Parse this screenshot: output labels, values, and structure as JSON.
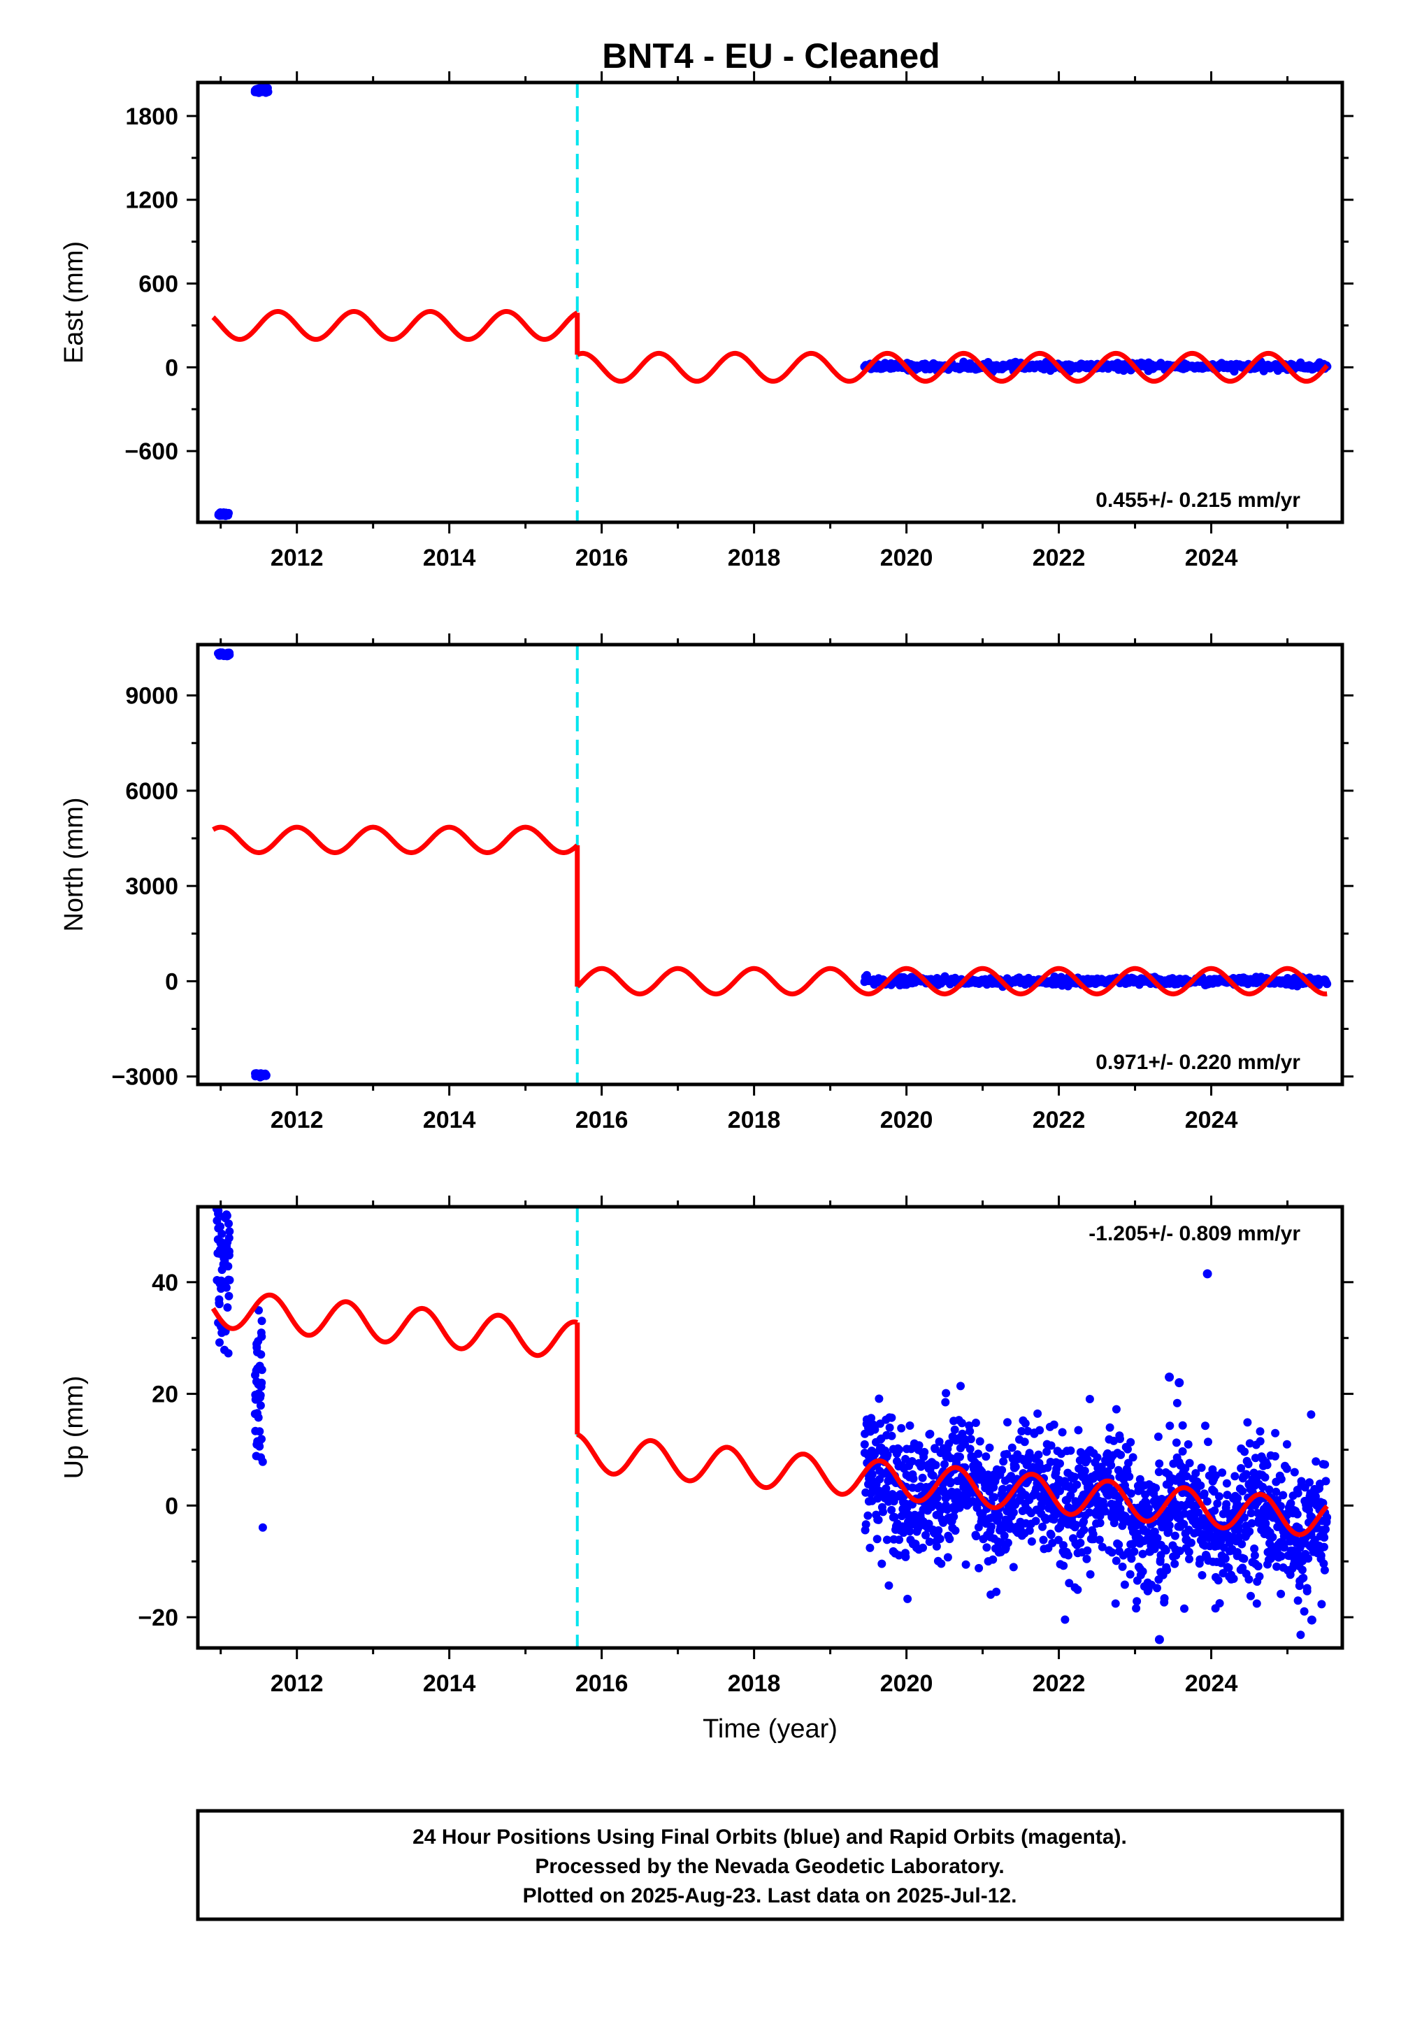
{
  "title": "BNT4  - EU - Cleaned",
  "footer": {
    "lines": [
      "24 Hour Positions Using Final Orbits (blue) and Rapid Orbits (magenta).",
      "Processed by the Nevada Geodetic Laboratory.",
      "Plotted on 2025-Aug-23. Last data on 2025-Jul-12."
    ]
  },
  "colors": {
    "data": "#0000ff",
    "model": "#ff0000",
    "offset": "#00e5ee",
    "frame": "#000000"
  },
  "chart_data": [
    {
      "type": "scatter",
      "ylabel": "East (mm)",
      "xlabel": "",
      "xlim": [
        2010.7,
        2025.72
      ],
      "ylim": [
        -1110,
        2040
      ],
      "x_ticks": [
        2012,
        2014,
        2016,
        2018,
        2020,
        2022,
        2024
      ],
      "y_ticks": [
        -600,
        0,
        600,
        1200,
        1800
      ],
      "y_tick_labels": [
        "−600",
        "0",
        "600",
        "1200",
        "1800"
      ],
      "rate_label": "0.455+/- 0.215 mm/yr",
      "rate_position": "bottom-right",
      "offset_epoch": 2015.68,
      "data_clusters": [
        {
          "x_start": 2010.97,
          "x_end": 2011.1,
          "y": -1050,
          "jitter": 8
        },
        {
          "x_start": 2011.45,
          "x_end": 2011.62,
          "y": 1985,
          "jitter": 8
        },
        {
          "x_start": 2019.45,
          "x_end": 2025.52,
          "y": 5,
          "jitter": 12
        }
      ],
      "model_segments": [
        {
          "x_start": 2010.9,
          "x_end": 2015.68,
          "offset": 300,
          "slope": 0,
          "amplitude": 100,
          "period": 1.0,
          "phase": 0.5
        },
        {
          "x_start": 2015.68,
          "x_end": 2025.52,
          "offset": 0,
          "slope": 0,
          "amplitude": 100,
          "period": 1.0,
          "phase": 0.5
        }
      ]
    },
    {
      "type": "scatter",
      "ylabel": "North (mm)",
      "xlabel": "",
      "xlim": [
        2010.7,
        2025.72
      ],
      "ylim": [
        -3250,
        10600
      ],
      "x_ticks": [
        2012,
        2014,
        2016,
        2018,
        2020,
        2022,
        2024
      ],
      "y_ticks": [
        -3000,
        0,
        3000,
        6000,
        9000
      ],
      "y_tick_labels": [
        "−3000",
        "0",
        "3000",
        "6000",
        "9000"
      ],
      "rate_label": "0.971+/- 0.220 mm/yr",
      "rate_position": "bottom-right",
      "offset_epoch": 2015.68,
      "data_clusters": [
        {
          "x_start": 2010.97,
          "x_end": 2011.12,
          "y": 10300,
          "jitter": 30
        },
        {
          "x_start": 2011.45,
          "x_end": 2011.6,
          "y": -2950,
          "jitter": 30
        },
        {
          "x_start": 2019.45,
          "x_end": 2025.52,
          "y": 0,
          "jitter": 60
        }
      ],
      "model_segments": [
        {
          "x_start": 2010.9,
          "x_end": 2015.68,
          "offset": 4450,
          "slope": 0,
          "amplitude": 400,
          "period": 1.0,
          "phase": 0.25
        },
        {
          "x_start": 2015.68,
          "x_end": 2025.52,
          "offset": 0,
          "slope": 0,
          "amplitude": 400,
          "period": 1.0,
          "phase": 0.25
        }
      ]
    },
    {
      "type": "scatter",
      "ylabel": "Up (mm)",
      "xlabel": "Time (year)",
      "xlim": [
        2010.7,
        2025.72
      ],
      "ylim": [
        -25.5,
        53.5
      ],
      "x_ticks": [
        2012,
        2014,
        2016,
        2018,
        2020,
        2022,
        2024
      ],
      "y_ticks": [
        -20,
        0,
        20,
        40
      ],
      "y_tick_labels": [
        "−20",
        "0",
        "20",
        "40"
      ],
      "rate_label": "-1.205+/- 0.809 mm/yr",
      "rate_position": "top-right",
      "offset_epoch": 2015.68,
      "data_clusters": [
        {
          "x_start": 2010.95,
          "x_end": 2011.12,
          "y": 44,
          "jitter": 7,
          "count": 60
        },
        {
          "x_start": 2011.45,
          "x_end": 2011.55,
          "y": 17,
          "jitter": 8,
          "count": 40
        },
        {
          "x_start": 2019.45,
          "x_end": 2025.52,
          "y": 0,
          "jitter": 6,
          "count": 1500,
          "slope": -1.2,
          "x_ref": 2022.5
        }
      ],
      "outliers": [
        [
          2023.95,
          41.5
        ],
        [
          2023.45,
          23
        ],
        [
          2023.58,
          22
        ],
        [
          2023.32,
          -24
        ],
        [
          2025.32,
          -20.5
        ]
      ],
      "model_segments": [
        {
          "x_start": 2010.9,
          "x_end": 2015.68,
          "offset": 35.3,
          "slope": -1.205,
          "amplitude": 3.3,
          "period": 1.0,
          "phase": 0.6
        },
        {
          "x_start": 2015.68,
          "x_end": 2025.52,
          "offset": 9.5,
          "slope": -1.205,
          "amplitude": 3.3,
          "period": 1.0,
          "phase": 0.6
        }
      ]
    }
  ]
}
